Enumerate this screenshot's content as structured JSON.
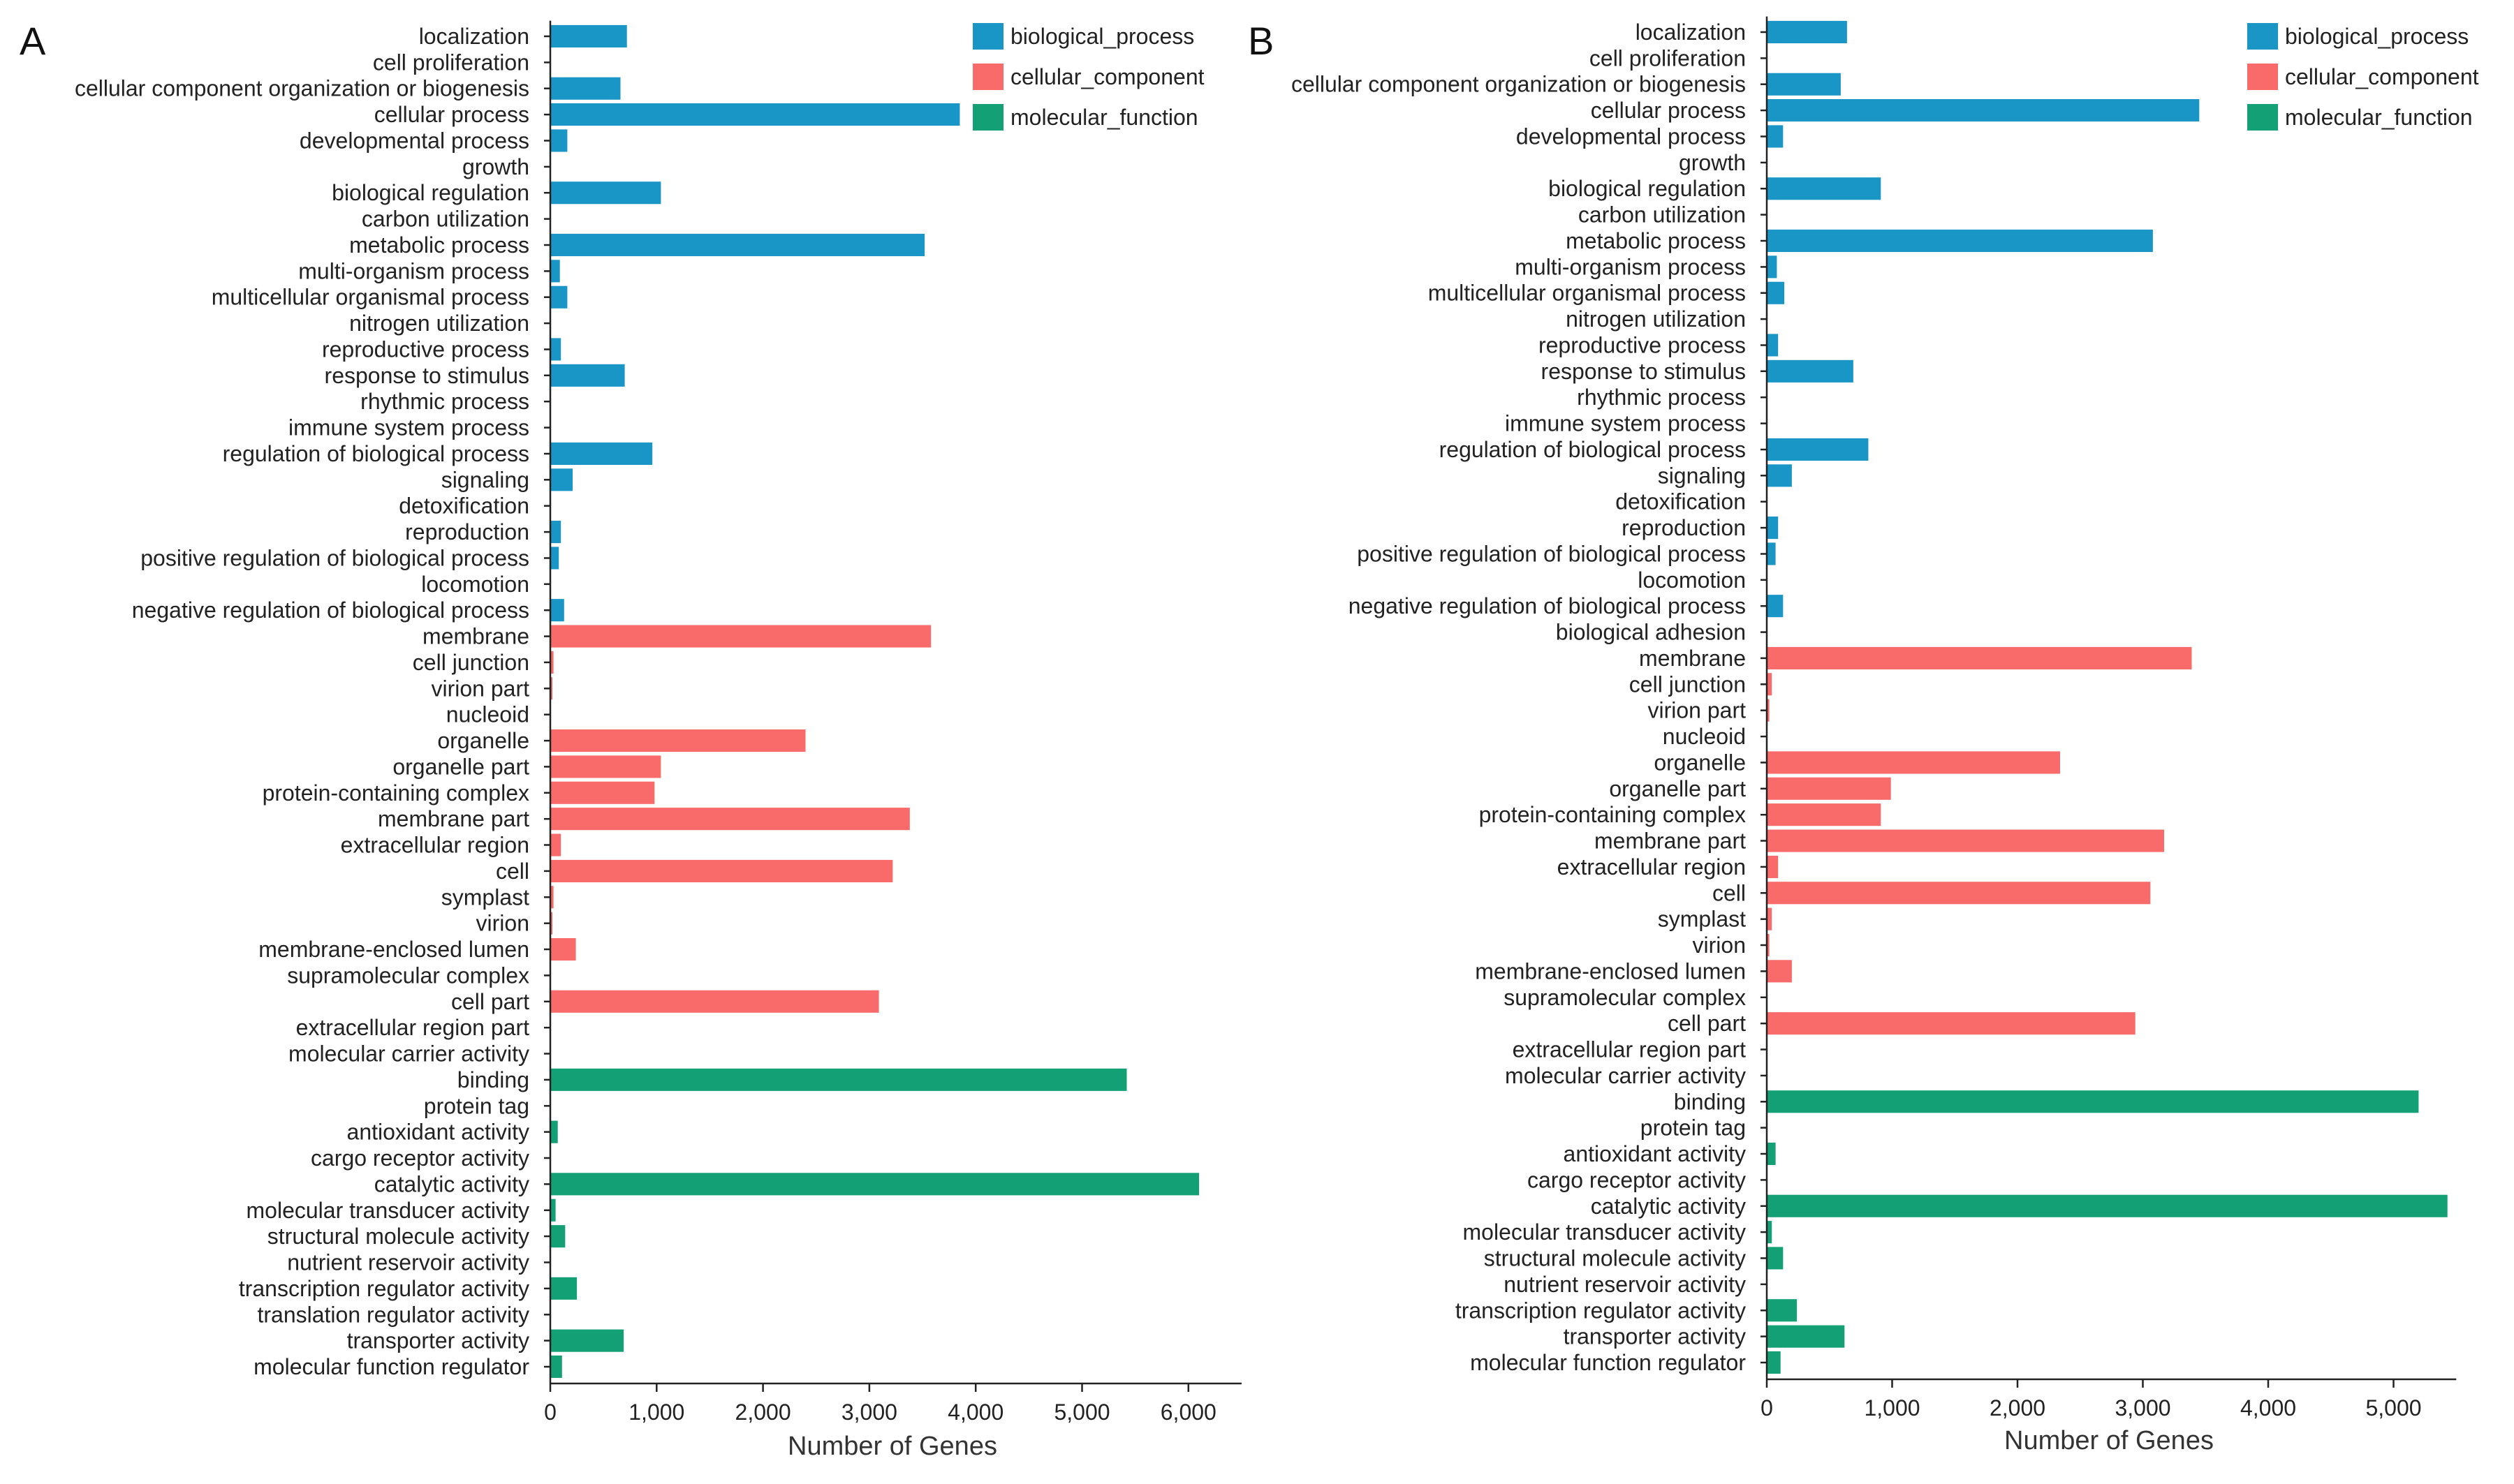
{
  "colors": {
    "biological_process": "#1a96c6",
    "cellular_component": "#f96a6a",
    "molecular_function": "#14a075"
  },
  "legend": [
    {
      "key": "biological_process",
      "label": "biological_process"
    },
    {
      "key": "cellular_component",
      "label": "cellular_component"
    },
    {
      "key": "molecular_function",
      "label": "molecular_function"
    }
  ],
  "chart_data": [
    {
      "panel": "A",
      "type": "bar",
      "orientation": "horizontal",
      "xlabel": "Number of Genes",
      "xlim": [
        0,
        6500
      ],
      "ticks": [
        0,
        1000,
        2000,
        3000,
        4000,
        5000,
        6000
      ],
      "tick_labels": [
        "0",
        "1,000",
        "2,000",
        "3,000",
        "4,000",
        "5,000",
        "6,000"
      ],
      "legend_position": "top-right",
      "categories": [
        {
          "label": "localization",
          "group": "biological_process",
          "value": 720
        },
        {
          "label": "cell proliferation",
          "group": "biological_process",
          "value": 0
        },
        {
          "label": "cellular component organization or biogenesis",
          "group": "biological_process",
          "value": 660
        },
        {
          "label": "cellular process",
          "group": "biological_process",
          "value": 3850
        },
        {
          "label": "developmental process",
          "group": "biological_process",
          "value": 160
        },
        {
          "label": "growth",
          "group": "biological_process",
          "value": 0
        },
        {
          "label": "biological regulation",
          "group": "biological_process",
          "value": 1040
        },
        {
          "label": "carbon utilization",
          "group": "biological_process",
          "value": 0
        },
        {
          "label": "metabolic process",
          "group": "biological_process",
          "value": 3520
        },
        {
          "label": "multi-organism process",
          "group": "biological_process",
          "value": 90
        },
        {
          "label": "multicellular organismal process",
          "group": "biological_process",
          "value": 160
        },
        {
          "label": "nitrogen utilization",
          "group": "biological_process",
          "value": 0
        },
        {
          "label": "reproductive process",
          "group": "biological_process",
          "value": 100
        },
        {
          "label": "response to stimulus",
          "group": "biological_process",
          "value": 700
        },
        {
          "label": "rhythmic process",
          "group": "biological_process",
          "value": 0
        },
        {
          "label": "immune system process",
          "group": "biological_process",
          "value": 0
        },
        {
          "label": "regulation of biological process",
          "group": "biological_process",
          "value": 960
        },
        {
          "label": "signaling",
          "group": "biological_process",
          "value": 210
        },
        {
          "label": "detoxification",
          "group": "biological_process",
          "value": 0
        },
        {
          "label": "reproduction",
          "group": "biological_process",
          "value": 100
        },
        {
          "label": "positive regulation of biological process",
          "group": "biological_process",
          "value": 80
        },
        {
          "label": "locomotion",
          "group": "biological_process",
          "value": 0
        },
        {
          "label": "negative regulation of biological process",
          "group": "biological_process",
          "value": 130
        },
        {
          "label": "membrane",
          "group": "cellular_component",
          "value": 3580
        },
        {
          "label": "cell junction",
          "group": "cellular_component",
          "value": 30
        },
        {
          "label": "virion part",
          "group": "cellular_component",
          "value": 20
        },
        {
          "label": "nucleoid",
          "group": "cellular_component",
          "value": 0
        },
        {
          "label": "organelle",
          "group": "cellular_component",
          "value": 2400
        },
        {
          "label": "organelle part",
          "group": "cellular_component",
          "value": 1040
        },
        {
          "label": "protein-containing complex",
          "group": "cellular_component",
          "value": 980
        },
        {
          "label": "membrane part",
          "group": "cellular_component",
          "value": 3380
        },
        {
          "label": "extracellular region",
          "group": "cellular_component",
          "value": 100
        },
        {
          "label": "cell",
          "group": "cellular_component",
          "value": 3220
        },
        {
          "label": "symplast",
          "group": "cellular_component",
          "value": 30
        },
        {
          "label": "virion",
          "group": "cellular_component",
          "value": 20
        },
        {
          "label": "membrane-enclosed lumen",
          "group": "cellular_component",
          "value": 240
        },
        {
          "label": "supramolecular complex",
          "group": "cellular_component",
          "value": 0
        },
        {
          "label": "cell part",
          "group": "cellular_component",
          "value": 3090
        },
        {
          "label": "extracellular region part",
          "group": "cellular_component",
          "value": 0
        },
        {
          "label": "molecular carrier activity",
          "group": "molecular_function",
          "value": 0
        },
        {
          "label": "binding",
          "group": "molecular_function",
          "value": 5420
        },
        {
          "label": "protein tag",
          "group": "molecular_function",
          "value": 0
        },
        {
          "label": "antioxidant activity",
          "group": "molecular_function",
          "value": 70
        },
        {
          "label": "cargo receptor activity",
          "group": "molecular_function",
          "value": 0
        },
        {
          "label": "catalytic activity",
          "group": "molecular_function",
          "value": 6100
        },
        {
          "label": "molecular transducer activity",
          "group": "molecular_function",
          "value": 50
        },
        {
          "label": "structural molecule activity",
          "group": "molecular_function",
          "value": 140
        },
        {
          "label": "nutrient reservoir activity",
          "group": "molecular_function",
          "value": 0
        },
        {
          "label": "transcription regulator activity",
          "group": "molecular_function",
          "value": 250
        },
        {
          "label": "translation regulator activity",
          "group": "molecular_function",
          "value": 0
        },
        {
          "label": "transporter activity",
          "group": "molecular_function",
          "value": 690
        },
        {
          "label": "molecular function regulator",
          "group": "molecular_function",
          "value": 110
        }
      ]
    },
    {
      "panel": "B",
      "type": "bar",
      "orientation": "horizontal",
      "xlabel": "Number of Genes",
      "xlim": [
        0,
        5500
      ],
      "ticks": [
        0,
        1000,
        2000,
        3000,
        4000,
        5000
      ],
      "tick_labels": [
        "0",
        "1,000",
        "2,000",
        "3,000",
        "4,000",
        "5,000"
      ],
      "legend_position": "top-right",
      "categories": [
        {
          "label": "localization",
          "group": "biological_process",
          "value": 640
        },
        {
          "label": "cell proliferation",
          "group": "biological_process",
          "value": 0
        },
        {
          "label": "cellular component organization or biogenesis",
          "group": "biological_process",
          "value": 590
        },
        {
          "label": "cellular process",
          "group": "biological_process",
          "value": 3450
        },
        {
          "label": "developmental process",
          "group": "biological_process",
          "value": 130
        },
        {
          "label": "growth",
          "group": "biological_process",
          "value": 0
        },
        {
          "label": "biological regulation",
          "group": "biological_process",
          "value": 910
        },
        {
          "label": "carbon utilization",
          "group": "biological_process",
          "value": 0
        },
        {
          "label": "metabolic process",
          "group": "biological_process",
          "value": 3080
        },
        {
          "label": "multi-organism process",
          "group": "biological_process",
          "value": 80
        },
        {
          "label": "multicellular organismal process",
          "group": "biological_process",
          "value": 140
        },
        {
          "label": "nitrogen utilization",
          "group": "biological_process",
          "value": 0
        },
        {
          "label": "reproductive process",
          "group": "biological_process",
          "value": 90
        },
        {
          "label": "response to stimulus",
          "group": "biological_process",
          "value": 690
        },
        {
          "label": "rhythmic process",
          "group": "biological_process",
          "value": 0
        },
        {
          "label": "immune system process",
          "group": "biological_process",
          "value": 0
        },
        {
          "label": "regulation of biological process",
          "group": "biological_process",
          "value": 810
        },
        {
          "label": "signaling",
          "group": "biological_process",
          "value": 200
        },
        {
          "label": "detoxification",
          "group": "biological_process",
          "value": 0
        },
        {
          "label": "reproduction",
          "group": "biological_process",
          "value": 90
        },
        {
          "label": "positive regulation of biological process",
          "group": "biological_process",
          "value": 70
        },
        {
          "label": "locomotion",
          "group": "biological_process",
          "value": 0
        },
        {
          "label": "negative regulation of biological process",
          "group": "biological_process",
          "value": 130
        },
        {
          "label": "biological adhesion",
          "group": "biological_process",
          "value": 0
        },
        {
          "label": "membrane",
          "group": "cellular_component",
          "value": 3390
        },
        {
          "label": "cell junction",
          "group": "cellular_component",
          "value": 40
        },
        {
          "label": "virion part",
          "group": "cellular_component",
          "value": 20
        },
        {
          "label": "nucleoid",
          "group": "cellular_component",
          "value": 0
        },
        {
          "label": "organelle",
          "group": "cellular_component",
          "value": 2340
        },
        {
          "label": "organelle part",
          "group": "cellular_component",
          "value": 990
        },
        {
          "label": "protein-containing complex",
          "group": "cellular_component",
          "value": 910
        },
        {
          "label": "membrane part",
          "group": "cellular_component",
          "value": 3170
        },
        {
          "label": "extracellular region",
          "group": "cellular_component",
          "value": 90
        },
        {
          "label": "cell",
          "group": "cellular_component",
          "value": 3060
        },
        {
          "label": "symplast",
          "group": "cellular_component",
          "value": 40
        },
        {
          "label": "virion",
          "group": "cellular_component",
          "value": 20
        },
        {
          "label": "membrane-enclosed lumen",
          "group": "cellular_component",
          "value": 200
        },
        {
          "label": "supramolecular complex",
          "group": "cellular_component",
          "value": 0
        },
        {
          "label": "cell part",
          "group": "cellular_component",
          "value": 2940
        },
        {
          "label": "extracellular region part",
          "group": "cellular_component",
          "value": 0
        },
        {
          "label": "molecular carrier activity",
          "group": "molecular_function",
          "value": 0
        },
        {
          "label": "binding",
          "group": "molecular_function",
          "value": 5200
        },
        {
          "label": "protein tag",
          "group": "molecular_function",
          "value": 0
        },
        {
          "label": "antioxidant activity",
          "group": "molecular_function",
          "value": 70
        },
        {
          "label": "cargo receptor activity",
          "group": "molecular_function",
          "value": 0
        },
        {
          "label": "catalytic activity",
          "group": "molecular_function",
          "value": 5430
        },
        {
          "label": "molecular transducer activity",
          "group": "molecular_function",
          "value": 40
        },
        {
          "label": "structural molecule activity",
          "group": "molecular_function",
          "value": 130
        },
        {
          "label": "nutrient reservoir activity",
          "group": "molecular_function",
          "value": 0
        },
        {
          "label": "transcription regulator activity",
          "group": "molecular_function",
          "value": 240
        },
        {
          "label": "transporter activity",
          "group": "molecular_function",
          "value": 620
        },
        {
          "label": "molecular function regulator",
          "group": "molecular_function",
          "value": 110
        }
      ]
    }
  ]
}
